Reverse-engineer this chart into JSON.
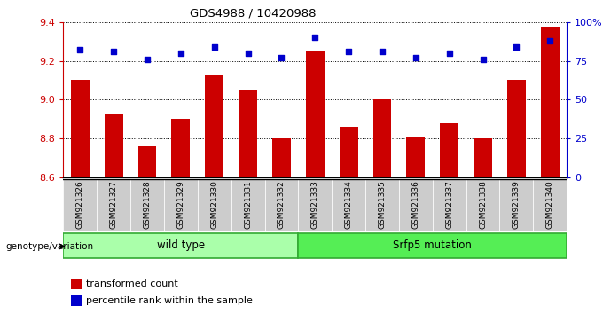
{
  "title": "GDS4988 / 10420988",
  "samples": [
    "GSM921326",
    "GSM921327",
    "GSM921328",
    "GSM921329",
    "GSM921330",
    "GSM921331",
    "GSM921332",
    "GSM921333",
    "GSM921334",
    "GSM921335",
    "GSM921336",
    "GSM921337",
    "GSM921338",
    "GSM921339",
    "GSM921340"
  ],
  "bar_values": [
    9.1,
    8.93,
    8.76,
    8.9,
    9.13,
    9.05,
    8.8,
    9.25,
    8.86,
    9.0,
    8.81,
    8.88,
    8.8,
    9.1,
    9.37
  ],
  "percentile_values": [
    82,
    81,
    76,
    80,
    84,
    80,
    77,
    90,
    81,
    81,
    77,
    80,
    76,
    84,
    88
  ],
  "ylim_left": [
    8.6,
    9.4
  ],
  "ylim_right": [
    0,
    100
  ],
  "bar_color": "#cc0000",
  "dot_color": "#0000cc",
  "bar_width": 0.55,
  "wild_type_indices": [
    0,
    1,
    2,
    3,
    4,
    5,
    6
  ],
  "mutation_indices": [
    7,
    8,
    9,
    10,
    11,
    12,
    13,
    14
  ],
  "wild_type_label": "wild type",
  "mutation_label": "Srfp5 mutation",
  "group_color_wt": "#aaffaa",
  "group_color_mut": "#55ee55",
  "legend_bar_label": "transformed count",
  "legend_dot_label": "percentile rank within the sample",
  "genotype_label": "genotype/variation",
  "bar_label_color": "#cc0000",
  "dot_label_color": "#0000cc",
  "ytick_left": [
    8.6,
    8.8,
    9.0,
    9.2,
    9.4
  ],
  "ytick_right": [
    0,
    25,
    50,
    75,
    100
  ],
  "xtick_bg": "#cccccc",
  "background_fig": "#ffffff"
}
